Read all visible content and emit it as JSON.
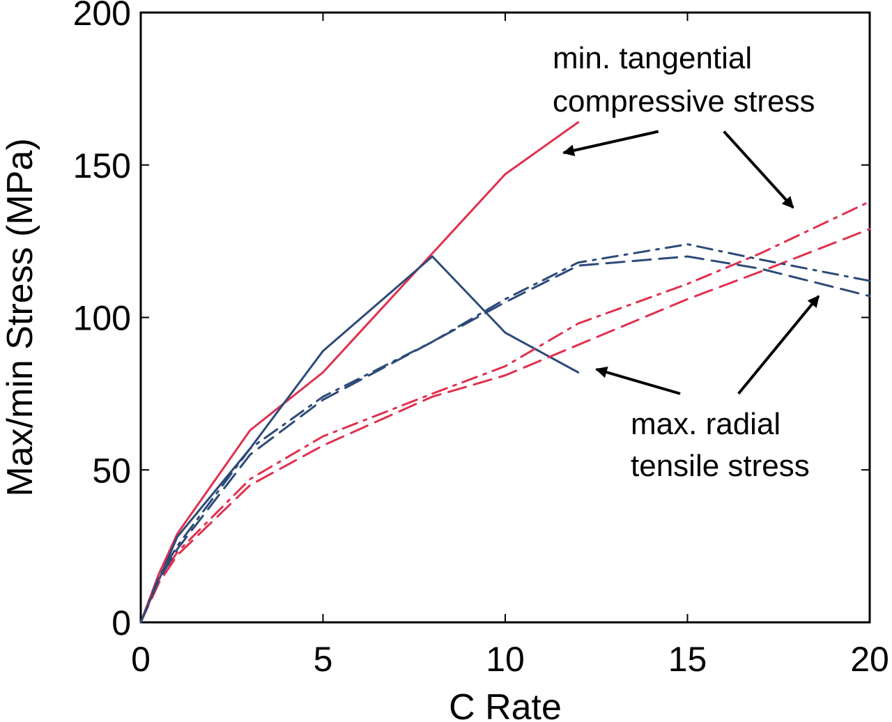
{
  "chart_data": {
    "type": "line",
    "title": "",
    "xlabel": "C Rate",
    "ylabel": "Max/min Stress (MPa)",
    "xlim": [
      0,
      20
    ],
    "ylim": [
      0,
      200
    ],
    "xticks": [
      0,
      5,
      10,
      15,
      20
    ],
    "xtick_labels": [
      "0",
      "5",
      "10",
      "15",
      "20"
    ],
    "yticks": [
      0,
      50,
      100,
      150,
      200
    ],
    "ytick_labels": [
      "0",
      "50",
      "100",
      "150",
      "200"
    ],
    "grid": false,
    "legend": "none",
    "series": [
      {
        "name": "min. tangential compressive stress (solid)",
        "color": "#e0304e",
        "style": "solid",
        "x": [
          0,
          0.5,
          1,
          3,
          5,
          8,
          10,
          12
        ],
        "y": [
          0,
          16,
          29,
          63,
          82,
          121,
          147,
          164
        ]
      },
      {
        "name": "max. radial tensile stress (solid)",
        "color": "#2c4a78",
        "style": "solid",
        "x": [
          0,
          0.5,
          1,
          3,
          5,
          8,
          10,
          12
        ],
        "y": [
          0,
          14,
          28,
          57,
          89,
          120,
          95,
          82
        ]
      },
      {
        "name": "min. tangential compressive stress (dash-dot)",
        "color": "#e0304e",
        "style": "dashdot",
        "x": [
          0,
          0.5,
          1,
          3,
          5,
          8,
          10,
          12,
          15,
          17,
          20
        ],
        "y": [
          0,
          14,
          23,
          47,
          61,
          75,
          84,
          98,
          111,
          121,
          138
        ]
      },
      {
        "name": "min. tangential compressive stress (dashed)",
        "color": "#e0304e",
        "style": "dashed",
        "x": [
          0,
          0.5,
          1,
          3,
          5,
          8,
          10,
          12,
          15,
          17,
          20
        ],
        "y": [
          0,
          13,
          22,
          45,
          58,
          74,
          81,
          91,
          106,
          115,
          129
        ]
      },
      {
        "name": "max. radial tensile stress (dash-dot)",
        "color": "#2c4a78",
        "style": "dashdot",
        "x": [
          0,
          0.5,
          1,
          3,
          5,
          8,
          10,
          12,
          15,
          17,
          20
        ],
        "y": [
          0,
          15,
          25,
          57,
          74,
          92,
          106,
          118,
          124,
          119,
          112
        ]
      },
      {
        "name": "max. radial tensile stress (dashed)",
        "color": "#2c4a78",
        "style": "dashed",
        "x": [
          0,
          0.5,
          1,
          3,
          5,
          8,
          10,
          12,
          15,
          17,
          20
        ],
        "y": [
          0,
          14,
          24,
          55,
          73,
          92,
          105,
          117,
          120,
          116,
          107
        ]
      }
    ],
    "annotations": [
      {
        "id": "tangential",
        "lines": [
          "min. tangential",
          "compressive stress"
        ],
        "arrows": [
          {
            "from": [
              14.2,
              161
            ],
            "to": [
              11.6,
              154
            ]
          },
          {
            "from": [
              16.0,
              161
            ],
            "to": [
              17.9,
              136
            ]
          }
        ]
      },
      {
        "id": "radial",
        "lines": [
          "max. radial",
          "tensile stress"
        ],
        "arrows": [
          {
            "from": [
              14.8,
              75
            ],
            "to": [
              12.5,
              83
            ]
          },
          {
            "from": [
              16.4,
              75
            ],
            "to": [
              18.6,
              107
            ]
          }
        ]
      }
    ],
    "annotation_color": "#000000"
  }
}
